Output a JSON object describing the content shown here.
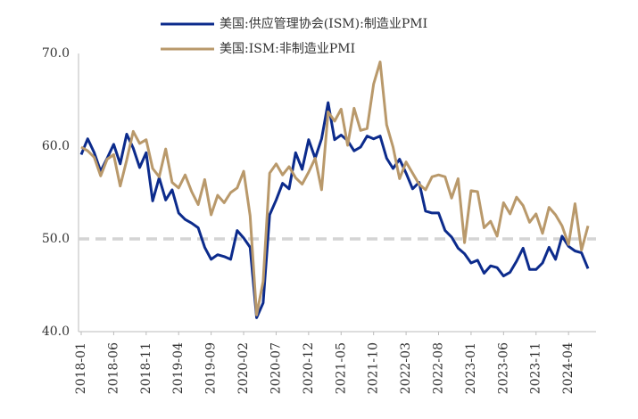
{
  "chart_data": {
    "type": "line",
    "categories": [
      "2018-01",
      null,
      null,
      null,
      null,
      "2018-06",
      null,
      null,
      null,
      null,
      "2018-11",
      null,
      null,
      null,
      null,
      "2019-04",
      null,
      null,
      null,
      null,
      "2019-09",
      null,
      null,
      null,
      null,
      "2020-02",
      null,
      null,
      null,
      null,
      "2020-07",
      null,
      null,
      null,
      null,
      "2020-12",
      null,
      null,
      null,
      null,
      "2021-05",
      null,
      null,
      null,
      null,
      "2021-10",
      null,
      null,
      null,
      null,
      "2022-03",
      null,
      null,
      null,
      null,
      "2022-08",
      null,
      null,
      null,
      null,
      "2023-01",
      null,
      null,
      null,
      null,
      "2023-06",
      null,
      null,
      null,
      null,
      "2023-11",
      null,
      null,
      null,
      null,
      "2024-04",
      null,
      null,
      null
    ],
    "series": [
      {
        "name": "美国:供应管理协会(ISM):制造业PMI",
        "color": "#0c2b8c",
        "values": [
          59.1,
          60.8,
          59.3,
          57.3,
          58.7,
          60.2,
          58.1,
          61.3,
          59.8,
          57.7,
          59.3,
          54.1,
          56.6,
          54.2,
          55.3,
          52.8,
          52.1,
          51.7,
          51.2,
          49.1,
          47.8,
          48.3,
          48.1,
          47.8,
          50.9,
          50.1,
          49.1,
          41.5,
          43.1,
          52.6,
          54.2,
          56.0,
          55.4,
          59.3,
          57.5,
          60.7,
          58.7,
          60.8,
          64.7,
          60.7,
          61.2,
          60.6,
          59.5,
          59.9,
          61.1,
          60.8,
          61.1,
          58.7,
          57.6,
          58.6,
          57.1,
          55.4,
          56.1,
          53.0,
          52.8,
          52.8,
          50.9,
          50.2,
          49.0,
          48.4,
          47.4,
          47.7,
          46.3,
          47.1,
          46.9,
          46.0,
          46.4,
          47.6,
          49.0,
          46.7,
          46.7,
          47.4,
          49.1,
          47.8,
          50.3,
          49.2,
          48.7,
          48.5,
          46.8
        ]
      },
      {
        "name": "美国:ISM:非制造业PMI",
        "color": "#b9996b",
        "values": [
          59.9,
          59.5,
          58.8,
          56.8,
          58.6,
          59.1,
          55.7,
          58.5,
          61.6,
          60.3,
          60.7,
          57.6,
          56.7,
          59.7,
          56.1,
          55.5,
          56.9,
          55.1,
          53.7,
          56.4,
          52.6,
          54.7,
          53.9,
          55.0,
          55.5,
          57.3,
          52.5,
          41.8,
          45.4,
          57.1,
          58.1,
          56.9,
          57.8,
          56.6,
          55.9,
          57.2,
          58.7,
          55.3,
          63.7,
          62.7,
          64.0,
          60.1,
          64.1,
          61.7,
          61.9,
          66.7,
          69.1,
          62.3,
          59.9,
          56.5,
          58.3,
          57.1,
          55.9,
          55.3,
          56.7,
          56.9,
          56.7,
          54.4,
          56.5,
          49.6,
          55.2,
          55.1,
          51.2,
          51.9,
          50.3,
          53.9,
          52.7,
          54.5,
          53.6,
          51.8,
          52.7,
          50.6,
          53.4,
          52.6,
          51.4,
          49.4,
          53.8,
          48.8,
          51.4
        ]
      }
    ],
    "ylim": [
      40,
      70
    ],
    "yticks": [
      {
        "value": 40,
        "label": "40.0"
      },
      {
        "value": 50,
        "label": "50.0"
      },
      {
        "value": 60,
        "label": "60.0"
      },
      {
        "value": 70,
        "label": "70.0"
      }
    ],
    "hline": {
      "value": 50,
      "color": "#d4d4d4"
    },
    "grid": false,
    "legend": "top"
  }
}
